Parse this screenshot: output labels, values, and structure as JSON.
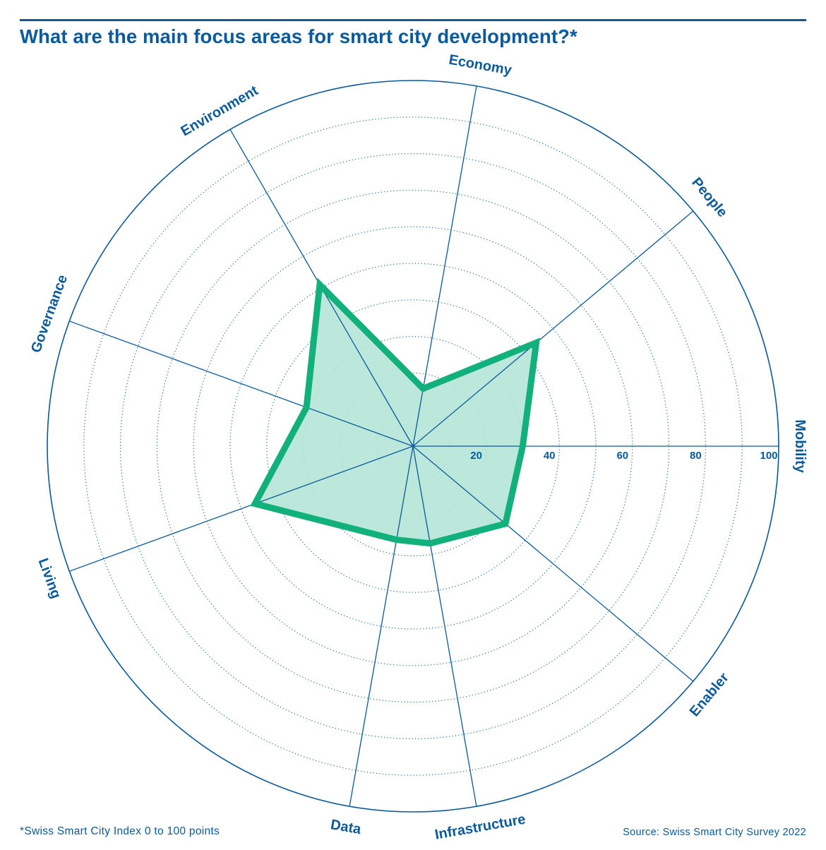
{
  "header": {
    "title": "What are the main focus areas for smart city development?*"
  },
  "footer": {
    "footnote": "*Swiss Smart City Index 0 to 100 points",
    "source": "Source: Swiss Smart City Survey 2022"
  },
  "colors": {
    "primary": "#0a5a9c",
    "series_stroke": "#12b07a",
    "series_fill": "#b4e6d6",
    "gridline": "#1b6fb4"
  },
  "chart_data": {
    "type": "radar",
    "title": "What are the main focus areas for smart city development?*",
    "categories": [
      "Mobility",
      "Enabler",
      "Infrastructure",
      "Data",
      "Living",
      "Governance",
      "Environment",
      "Economy",
      "People"
    ],
    "series": [
      {
        "values": [
          30,
          33,
          27,
          26,
          46,
          31,
          51,
          16,
          44
        ]
      }
    ],
    "rlim": [
      0,
      100
    ],
    "ring_step": 10,
    "tick_labels": [
      "20",
      "40",
      "60",
      "80",
      "100"
    ],
    "tick_values": [
      20,
      40,
      60,
      80,
      100
    ],
    "grid": true
  }
}
